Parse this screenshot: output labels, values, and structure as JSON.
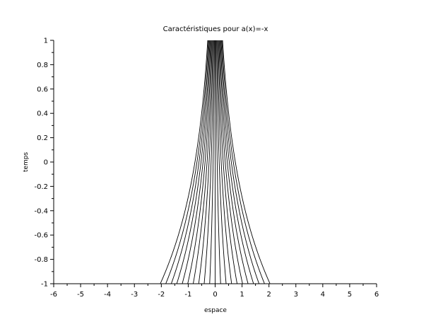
{
  "chart_data": {
    "type": "line",
    "title": "Caractéristiques pour a(x)=-x",
    "xlabel": "espace",
    "ylabel": "temps",
    "xlim": [
      -6,
      6
    ],
    "ylim": [
      -1,
      1
    ],
    "xticks": [
      -6,
      -5,
      -4,
      -3,
      -2,
      -1,
      0,
      1,
      2,
      3,
      4,
      5,
      6
    ],
    "yticks": [
      -1,
      -0.8,
      -0.6,
      -0.4,
      -0.2,
      0,
      0.2,
      0.4,
      0.6,
      0.8,
      1
    ],
    "xtick_labels": [
      "-6",
      "-5",
      "-4",
      "-3",
      "-2",
      "-1",
      "0",
      "1",
      "2",
      "3",
      "4",
      "5",
      "6"
    ],
    "ytick_labels": [
      "-1",
      "-0.8",
      "-0.6",
      "-0.4",
      "-0.2",
      "0",
      "0.2",
      "0.4",
      "0.6",
      "0.8",
      "1"
    ],
    "grid": false,
    "line_color": "#000000",
    "curve_function": "x(t) = x0 * exp(-t)",
    "series_x0": [
      -0.75,
      -0.675,
      -0.6,
      -0.525,
      -0.45,
      -0.375,
      -0.3,
      -0.225,
      -0.15,
      -0.075,
      0,
      0.075,
      0.15,
      0.225,
      0.3,
      0.375,
      0.45,
      0.525,
      0.6,
      0.675,
      0.75
    ],
    "t_values": [
      -1,
      1
    ]
  }
}
